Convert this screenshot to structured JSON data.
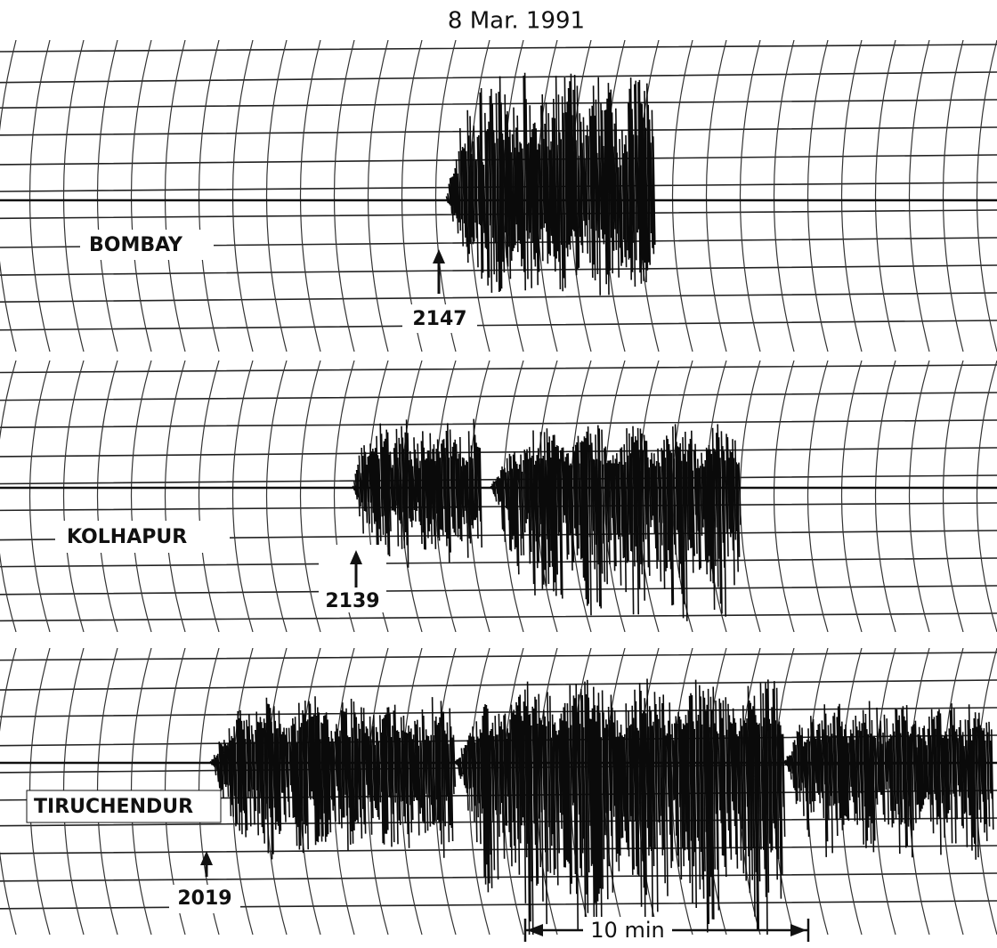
{
  "title": "8 Mar. 1991",
  "panels": [
    {
      "station": "BOMBAY",
      "onset": "2147"
    },
    {
      "station": "KOLHAPUR",
      "onset": "2139"
    },
    {
      "station": "TIRUCHENDUR",
      "onset": "2019"
    }
  ],
  "scale": {
    "label": "10 min"
  }
}
